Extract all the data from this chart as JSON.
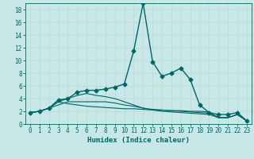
{
  "xlabel": "Humidex (Indice chaleur)",
  "ylabel": "",
  "background_color": "#c8e8e8",
  "grid_color": "#c0d8d8",
  "line_color": "#006666",
  "xlim": [
    -0.5,
    23.5
  ],
  "ylim": [
    0,
    19
  ],
  "xticks": [
    0,
    1,
    2,
    3,
    4,
    5,
    6,
    7,
    8,
    9,
    10,
    11,
    12,
    13,
    14,
    15,
    16,
    17,
    18,
    19,
    20,
    21,
    22,
    23
  ],
  "yticks": [
    0,
    2,
    4,
    6,
    8,
    10,
    12,
    14,
    16,
    18
  ],
  "lines": [
    {
      "x": [
        0,
        1,
        2,
        3,
        4,
        5,
        6,
        7,
        8,
        9,
        10,
        11,
        12,
        13,
        14,
        15,
        16,
        17,
        18,
        19,
        20,
        21,
        22,
        23
      ],
      "y": [
        1.8,
        2.0,
        2.5,
        3.8,
        4.0,
        5.0,
        5.3,
        5.3,
        5.5,
        5.8,
        6.3,
        11.5,
        19.0,
        9.8,
        7.5,
        8.0,
        8.8,
        7.0,
        3.0,
        1.8,
        1.5,
        1.5,
        1.8,
        0.5
      ],
      "marker": "D",
      "markersize": 2.5,
      "linewidth": 1.0
    },
    {
      "x": [
        0,
        1,
        2,
        3,
        4,
        5,
        6,
        7,
        8,
        9,
        10,
        11,
        12,
        13,
        14,
        15,
        16,
        17,
        18,
        19,
        20,
        21,
        22,
        23
      ],
      "y": [
        1.8,
        2.0,
        2.5,
        3.5,
        3.2,
        3.0,
        2.8,
        2.7,
        2.6,
        2.5,
        2.4,
        2.4,
        2.3,
        2.2,
        2.2,
        2.1,
        2.1,
        2.0,
        2.0,
        1.9,
        1.0,
        1.0,
        1.5,
        0.5
      ],
      "marker": null,
      "markersize": 0,
      "linewidth": 0.8
    },
    {
      "x": [
        0,
        1,
        2,
        3,
        4,
        5,
        6,
        7,
        8,
        9,
        10,
        11,
        12,
        13,
        14,
        15,
        16,
        17,
        18,
        19,
        20,
        21,
        22,
        23
      ],
      "y": [
        1.8,
        2.0,
        2.5,
        3.0,
        3.5,
        3.5,
        3.5,
        3.5,
        3.5,
        3.3,
        3.0,
        2.8,
        2.5,
        2.3,
        2.2,
        2.1,
        2.0,
        1.9,
        1.8,
        1.7,
        1.0,
        1.0,
        1.5,
        0.5
      ],
      "marker": null,
      "markersize": 0,
      "linewidth": 0.8
    },
    {
      "x": [
        0,
        1,
        2,
        3,
        4,
        5,
        6,
        7,
        8,
        9,
        10,
        11,
        12,
        13,
        14,
        15,
        16,
        17,
        18,
        19,
        20,
        21,
        22,
        23
      ],
      "y": [
        1.8,
        2.0,
        2.5,
        3.5,
        4.0,
        4.5,
        4.8,
        4.5,
        4.3,
        4.0,
        3.5,
        3.0,
        2.5,
        2.2,
        2.0,
        1.9,
        1.8,
        1.7,
        1.6,
        1.5,
        1.0,
        1.0,
        1.5,
        0.5
      ],
      "marker": null,
      "markersize": 0,
      "linewidth": 0.8
    }
  ]
}
